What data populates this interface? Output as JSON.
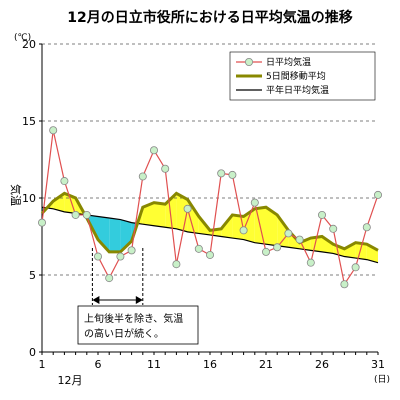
{
  "chart_data": {
    "type": "line",
    "title": "12月の日立市役所における日平均気温の推移",
    "ylabel": "気温",
    "yunit": "(℃)",
    "xunit": "(日)",
    "month_label": "12月",
    "x": [
      1,
      2,
      3,
      4,
      5,
      6,
      7,
      8,
      9,
      10,
      11,
      12,
      13,
      14,
      15,
      16,
      17,
      18,
      19,
      20,
      21,
      22,
      23,
      24,
      25,
      26,
      27,
      28,
      29,
      30,
      31
    ],
    "xticks": [
      1,
      6,
      11,
      16,
      21,
      26,
      31
    ],
    "yticks": [
      0,
      5,
      10,
      15,
      20
    ],
    "ylim": [
      0,
      20
    ],
    "xlim": [
      1,
      31
    ],
    "grid": "horizontal dashed",
    "legend_position": "top-right",
    "series": [
      {
        "name": "日平均気温",
        "color": "#e05050",
        "marker": "circle, light green fill",
        "values": [
          8.4,
          14.4,
          11.1,
          8.9,
          8.9,
          6.2,
          4.8,
          6.2,
          6.6,
          11.4,
          13.1,
          11.9,
          5.7,
          9.3,
          6.7,
          6.3,
          11.6,
          11.5,
          7.9,
          9.7,
          6.5,
          6.8,
          7.7,
          7.3,
          5.8,
          8.9,
          8.0,
          4.4,
          5.5,
          8.1,
          10.2
        ]
      },
      {
        "name": "5日間移動平均",
        "color": "#888800",
        "values": [
          9.0,
          9.8,
          10.3,
          10.0,
          8.7,
          7.3,
          6.5,
          6.5,
          7.2,
          9.4,
          9.7,
          9.6,
          10.3,
          9.9,
          8.8,
          7.9,
          8.0,
          8.9,
          8.8,
          9.3,
          9.4,
          8.9,
          7.9,
          7.1,
          7.4,
          7.5,
          7.0,
          6.7,
          7.1,
          7.0,
          6.6
        ]
      },
      {
        "name": "平年日平均気温",
        "color": "#000000",
        "values": [
          9.4,
          9.3,
          9.1,
          9.0,
          8.9,
          8.8,
          8.7,
          8.6,
          8.4,
          8.3,
          8.2,
          8.1,
          8.0,
          7.8,
          7.7,
          7.6,
          7.5,
          7.4,
          7.3,
          7.1,
          7.0,
          6.9,
          6.8,
          6.7,
          6.6,
          6.5,
          6.4,
          6.2,
          6.1,
          6.0,
          5.8
        ]
      }
    ],
    "annotation": {
      "line1": "上旬後半を除き、気温",
      "line2": "の高い日が続く。",
      "span_start_day": 5.5,
      "span_end_day": 10
    },
    "fill_colors": {
      "above_normal": "#ffff33",
      "below_normal": "#33ccdd"
    }
  }
}
